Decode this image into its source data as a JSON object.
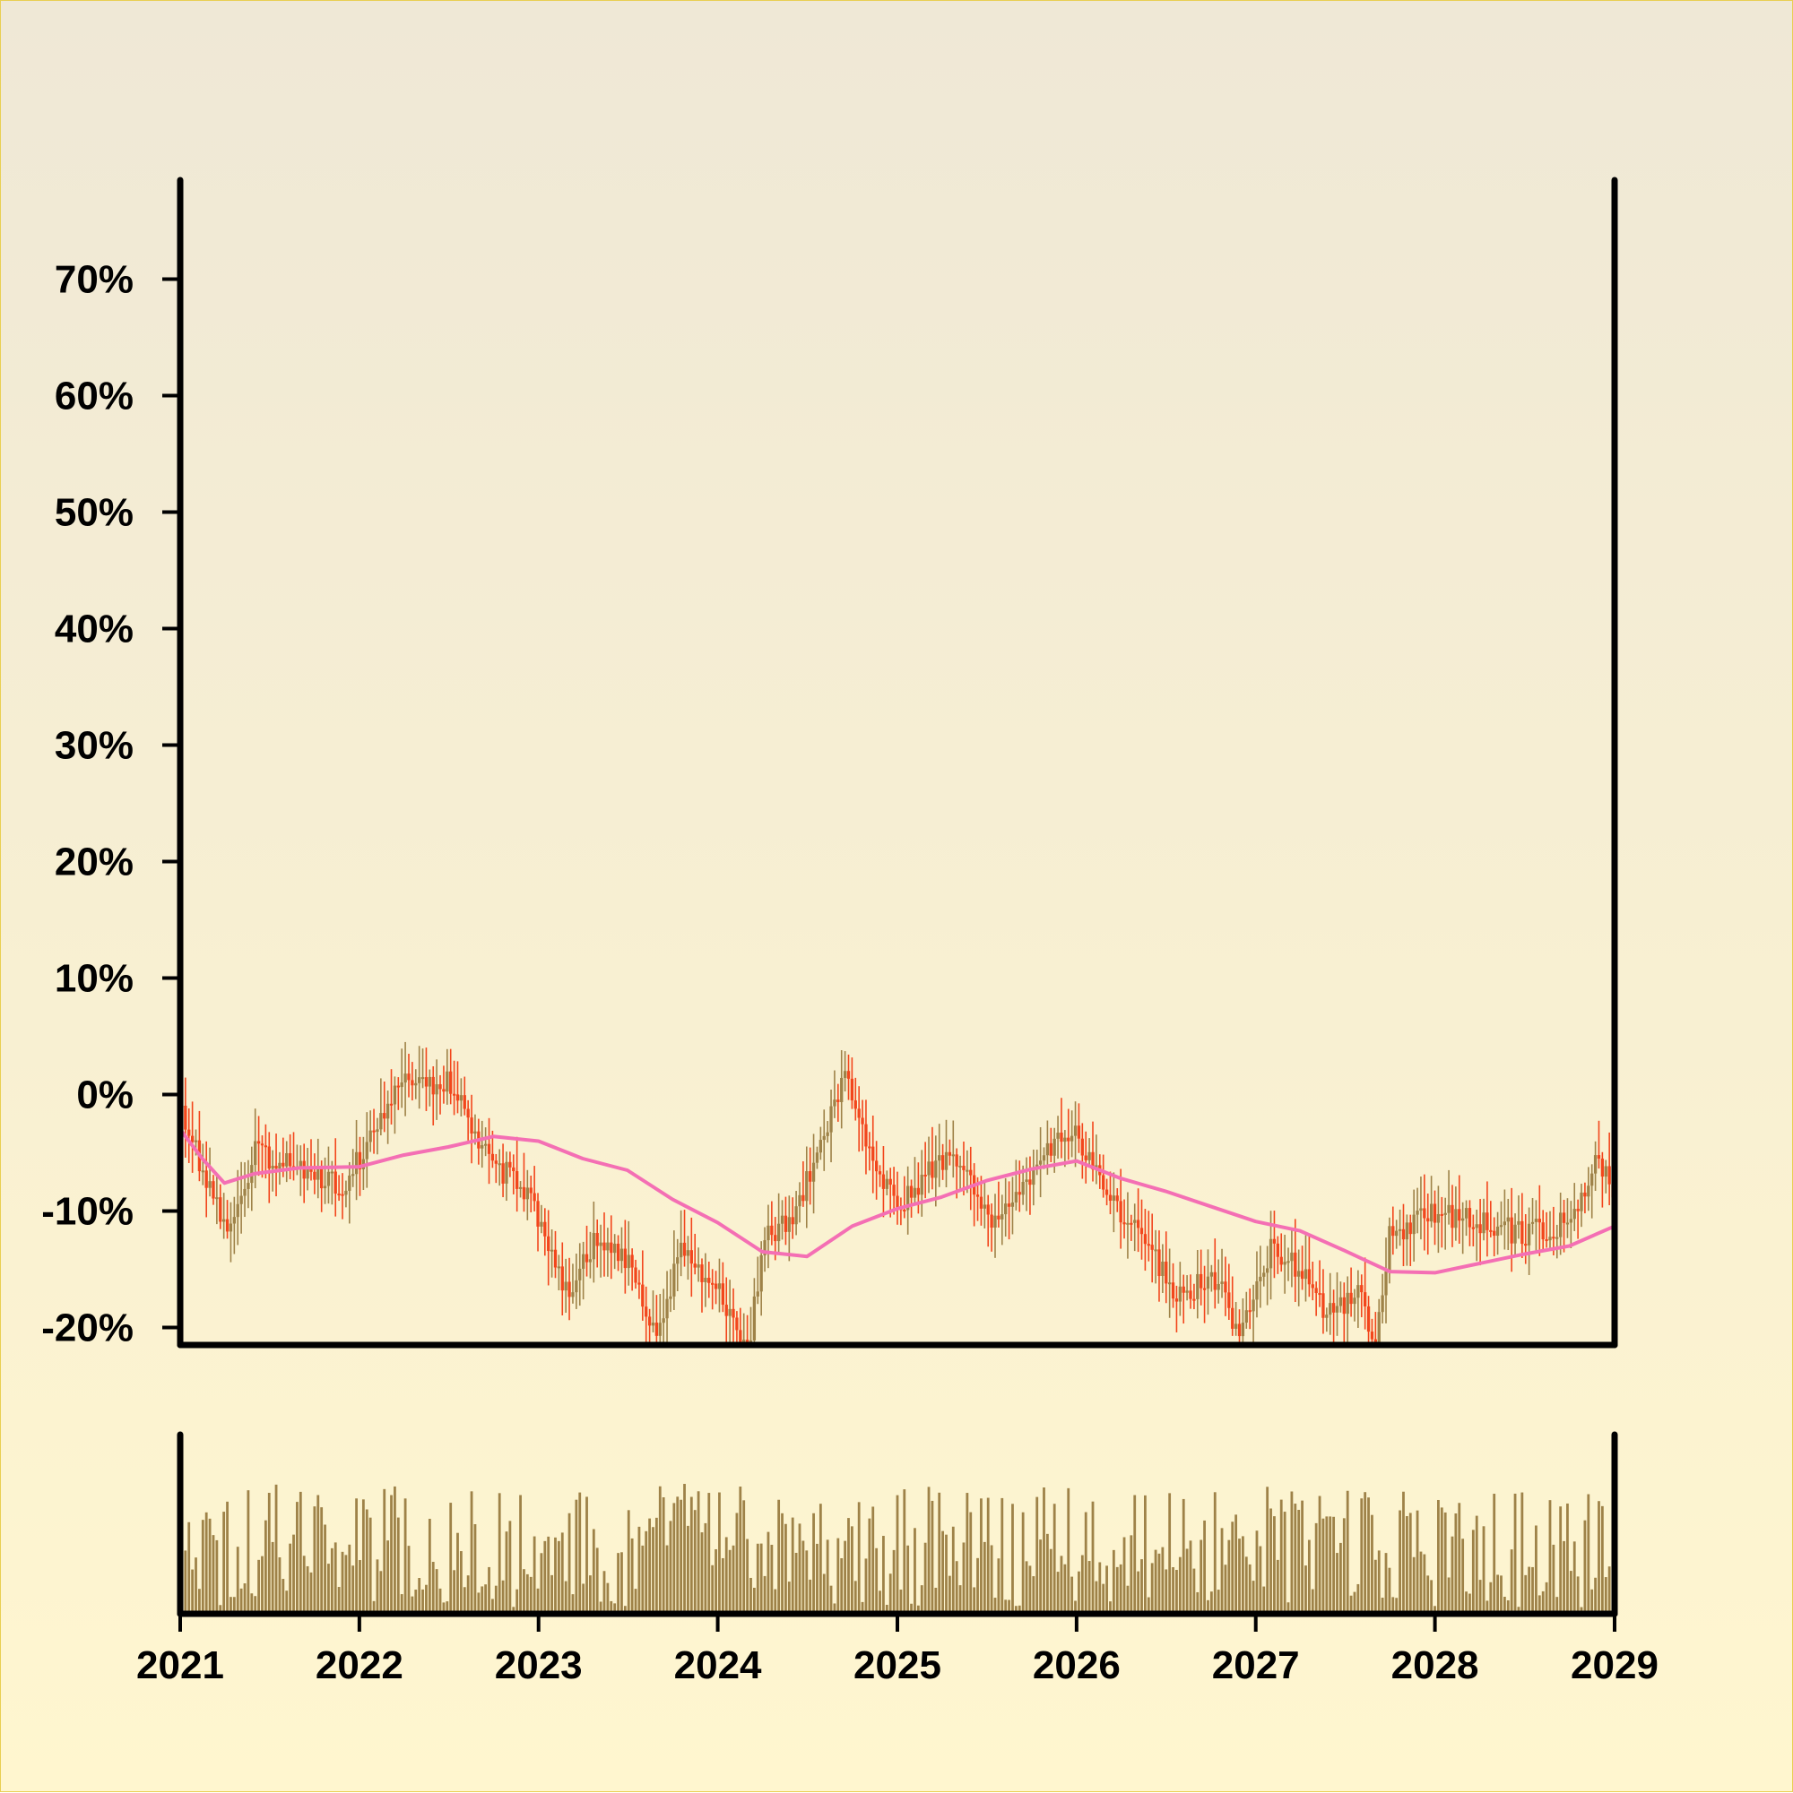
{
  "chart_data": [
    {
      "type": "candlestick",
      "title": "",
      "xlabel": "",
      "ylabel": "",
      "x_range": [
        "2021-01-01",
        "2029-01-01"
      ],
      "ylim": [
        -21.5,
        78.5
      ],
      "y_unit": "%",
      "y_ticks": [
        -20,
        -10,
        0,
        10,
        20,
        30,
        40,
        50,
        60,
        70
      ],
      "y_tick_labels": [
        "-20%",
        "-10%",
        "0%",
        "10%",
        "20%",
        "30%",
        "40%",
        "50%",
        "60%",
        "70%"
      ],
      "x_ticks": [
        "2021",
        "2022",
        "2023",
        "2024",
        "2025",
        "2026",
        "2027",
        "2028",
        "2029"
      ],
      "grid": false,
      "legend": "none",
      "colors": {
        "up": "#9e8248",
        "down": "#f2461c",
        "moving_average": "#f46fb4"
      },
      "price_path": [
        {
          "x": "2021-01-01",
          "y": -1
        },
        {
          "x": "2021-03-01",
          "y": -8
        },
        {
          "x": "2021-04-15",
          "y": -12
        },
        {
          "x": "2021-06-01",
          "y": -5
        },
        {
          "x": "2021-09-01",
          "y": -6
        },
        {
          "x": "2021-12-01",
          "y": -8
        },
        {
          "x": "2022-02-01",
          "y": -3
        },
        {
          "x": "2022-04-01",
          "y": 1
        },
        {
          "x": "2022-07-01",
          "y": 1
        },
        {
          "x": "2022-09-15",
          "y": -5
        },
        {
          "x": "2022-12-15",
          "y": -9
        },
        {
          "x": "2023-03-01",
          "y": -17
        },
        {
          "x": "2023-05-01",
          "y": -12
        },
        {
          "x": "2023-07-01",
          "y": -14
        },
        {
          "x": "2023-09-01",
          "y": -21
        },
        {
          "x": "2023-10-20",
          "y": -13
        },
        {
          "x": "2024-01-01",
          "y": -17
        },
        {
          "x": "2024-03-01",
          "y": -22
        },
        {
          "x": "2024-04-10",
          "y": -12
        },
        {
          "x": "2024-06-01",
          "y": -11
        },
        {
          "x": "2024-09-15",
          "y": 2
        },
        {
          "x": "2024-12-01",
          "y": -8
        },
        {
          "x": "2025-01-15",
          "y": -9
        },
        {
          "x": "2025-04-15",
          "y": -5
        },
        {
          "x": "2025-07-15",
          "y": -11
        },
        {
          "x": "2025-11-01",
          "y": -5
        },
        {
          "x": "2026-01-01",
          "y": -3
        },
        {
          "x": "2026-03-01",
          "y": -9
        },
        {
          "x": "2026-05-01",
          "y": -11
        },
        {
          "x": "2026-07-15",
          "y": -17
        },
        {
          "x": "2026-10-15",
          "y": -16
        },
        {
          "x": "2026-12-01",
          "y": -21
        },
        {
          "x": "2027-02-01",
          "y": -13
        },
        {
          "x": "2027-04-01",
          "y": -15
        },
        {
          "x": "2027-06-01",
          "y": -19
        },
        {
          "x": "2027-08-01",
          "y": -17
        },
        {
          "x": "2027-09-01",
          "y": -22
        },
        {
          "x": "2027-10-01",
          "y": -12
        },
        {
          "x": "2028-01-01",
          "y": -10
        },
        {
          "x": "2028-04-01",
          "y": -11
        },
        {
          "x": "2028-07-01",
          "y": -12
        },
        {
          "x": "2028-10-01",
          "y": -11
        },
        {
          "x": "2028-12-01",
          "y": -5
        },
        {
          "x": "2029-01-01",
          "y": -10
        }
      ],
      "moving_average": [
        {
          "x": "2021-01-01",
          "y": -3
        },
        {
          "x": "2021-02-15",
          "y": -5.5
        },
        {
          "x": "2021-04-01",
          "y": -7.6
        },
        {
          "x": "2021-06-01",
          "y": -6.8
        },
        {
          "x": "2021-09-01",
          "y": -6.3
        },
        {
          "x": "2022-01-01",
          "y": -6.2
        },
        {
          "x": "2022-04-01",
          "y": -5.2
        },
        {
          "x": "2022-07-01",
          "y": -4.5
        },
        {
          "x": "2022-10-01",
          "y": -3.6
        },
        {
          "x": "2023-01-01",
          "y": -4
        },
        {
          "x": "2023-04-01",
          "y": -5.5
        },
        {
          "x": "2023-07-01",
          "y": -6.5
        },
        {
          "x": "2023-10-01",
          "y": -9
        },
        {
          "x": "2024-01-01",
          "y": -11
        },
        {
          "x": "2024-04-01",
          "y": -13.5
        },
        {
          "x": "2024-07-01",
          "y": -13.9
        },
        {
          "x": "2024-10-01",
          "y": -11.3
        },
        {
          "x": "2025-01-01",
          "y": -9.8
        },
        {
          "x": "2025-04-01",
          "y": -8.8
        },
        {
          "x": "2025-07-01",
          "y": -7.4
        },
        {
          "x": "2025-10-01",
          "y": -6.4
        },
        {
          "x": "2026-01-01",
          "y": -5.7
        },
        {
          "x": "2026-04-01",
          "y": -7.2
        },
        {
          "x": "2026-07-01",
          "y": -8.3
        },
        {
          "x": "2026-10-01",
          "y": -9.6
        },
        {
          "x": "2027-01-01",
          "y": -10.9
        },
        {
          "x": "2027-04-01",
          "y": -11.7
        },
        {
          "x": "2027-07-01",
          "y": -13.4
        },
        {
          "x": "2027-10-01",
          "y": -15.2
        },
        {
          "x": "2028-01-01",
          "y": -15.3
        },
        {
          "x": "2028-04-01",
          "y": -14.5
        },
        {
          "x": "2028-07-01",
          "y": -13.7
        },
        {
          "x": "2028-10-01",
          "y": -13
        },
        {
          "x": "2029-01-01",
          "y": -11.3
        }
      ]
    },
    {
      "type": "bar",
      "title": "",
      "xlabel": "",
      "ylabel": "",
      "description_of_values": "weekly volume, unlabeled axis, relative heights 0-1",
      "x_range": [
        "2021-01-01",
        "2029-01-01"
      ],
      "x_ticks": [
        "2021",
        "2022",
        "2023",
        "2024",
        "2025",
        "2026",
        "2027",
        "2028",
        "2029"
      ],
      "color": "#9e8248",
      "bar_count": 411,
      "value_range": [
        0.05,
        1.0
      ]
    }
  ]
}
